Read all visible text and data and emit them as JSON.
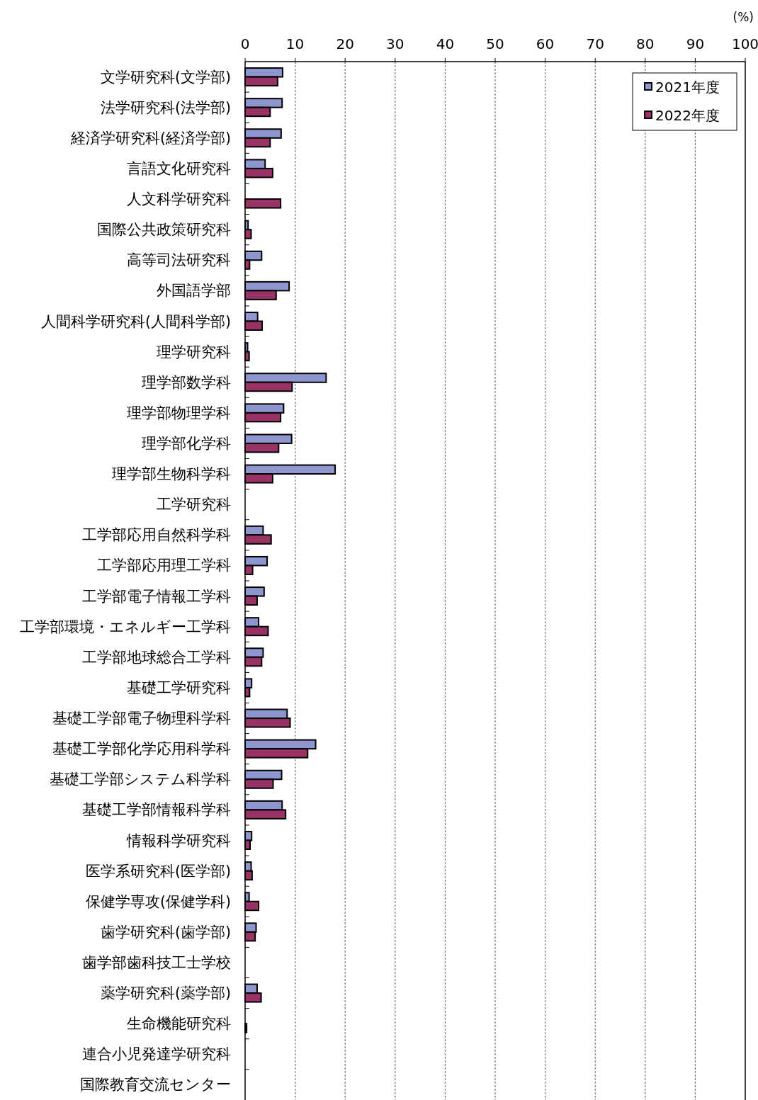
{
  "chart_data": {
    "type": "bar",
    "orientation": "horizontal",
    "xlabel": "(%)",
    "categories": [
      "文学研究科(文学部)",
      "法学研究科(法学部)",
      "経済学研究科(経済学部)",
      "言語文化研究科",
      "人文科学研究科",
      "国際公共政策研究科",
      "高等司法研究科",
      "外国語学部",
      "人間科学研究科(人間科学部)",
      "理学研究科",
      "理学部数学科",
      "理学部物理学科",
      "理学部化学科",
      "理学部生物科学科",
      "工学研究科",
      "工学部応用自然科学科",
      "工学部応用理工学科",
      "工学部電子情報工学科",
      "工学部環境・エネルギー工学科",
      "工学部地球総合工学科",
      "基礎工学研究科",
      "基礎工学部電子物理科学科",
      "基礎工学部化学応用科学科",
      "基礎工学部システム科学科",
      "基礎工学部情報科学科",
      "情報科学研究科",
      "医学系研究科(医学部)",
      "保健学専攻(保健学科)",
      "歯学研究科(歯学部)",
      "歯学部歯科技工士学校",
      "薬学研究科(薬学部)",
      "生命機能研究科",
      "連合小児発達学研究科",
      "国際教育交流センター"
    ],
    "series": [
      {
        "name": "2021年度",
        "color": "#8e96cf",
        "values": [
          7.5,
          7.4,
          7.2,
          4.0,
          0,
          0.6,
          3.3,
          8.8,
          2.5,
          0.5,
          16.2,
          7.7,
          9.3,
          18.0,
          null,
          3.6,
          4.4,
          3.8,
          2.7,
          3.6,
          1.3,
          8.4,
          14.1,
          7.3,
          7.4,
          1.3,
          1.2,
          0.8,
          2.2,
          0,
          2.4,
          null,
          0,
          0
        ]
      },
      {
        "name": "2022年度",
        "color": "#993366",
        "values": [
          6.5,
          5.0,
          5.0,
          5.5,
          7.1,
          1.2,
          0.9,
          6.2,
          3.4,
          0.8,
          9.4,
          7.1,
          6.7,
          5.5,
          null,
          5.2,
          1.5,
          2.4,
          4.6,
          3.3,
          0.9,
          9.0,
          12.5,
          5.6,
          8.1,
          1.0,
          1.4,
          2.7,
          2.0,
          0,
          3.2,
          0.3,
          0,
          0
        ]
      }
    ],
    "xlim": [
      0,
      100
    ],
    "xticks": [
      0,
      10,
      20,
      30,
      40,
      50,
      60,
      70,
      80,
      90,
      100
    ],
    "grid": "x",
    "legend": "top right"
  }
}
